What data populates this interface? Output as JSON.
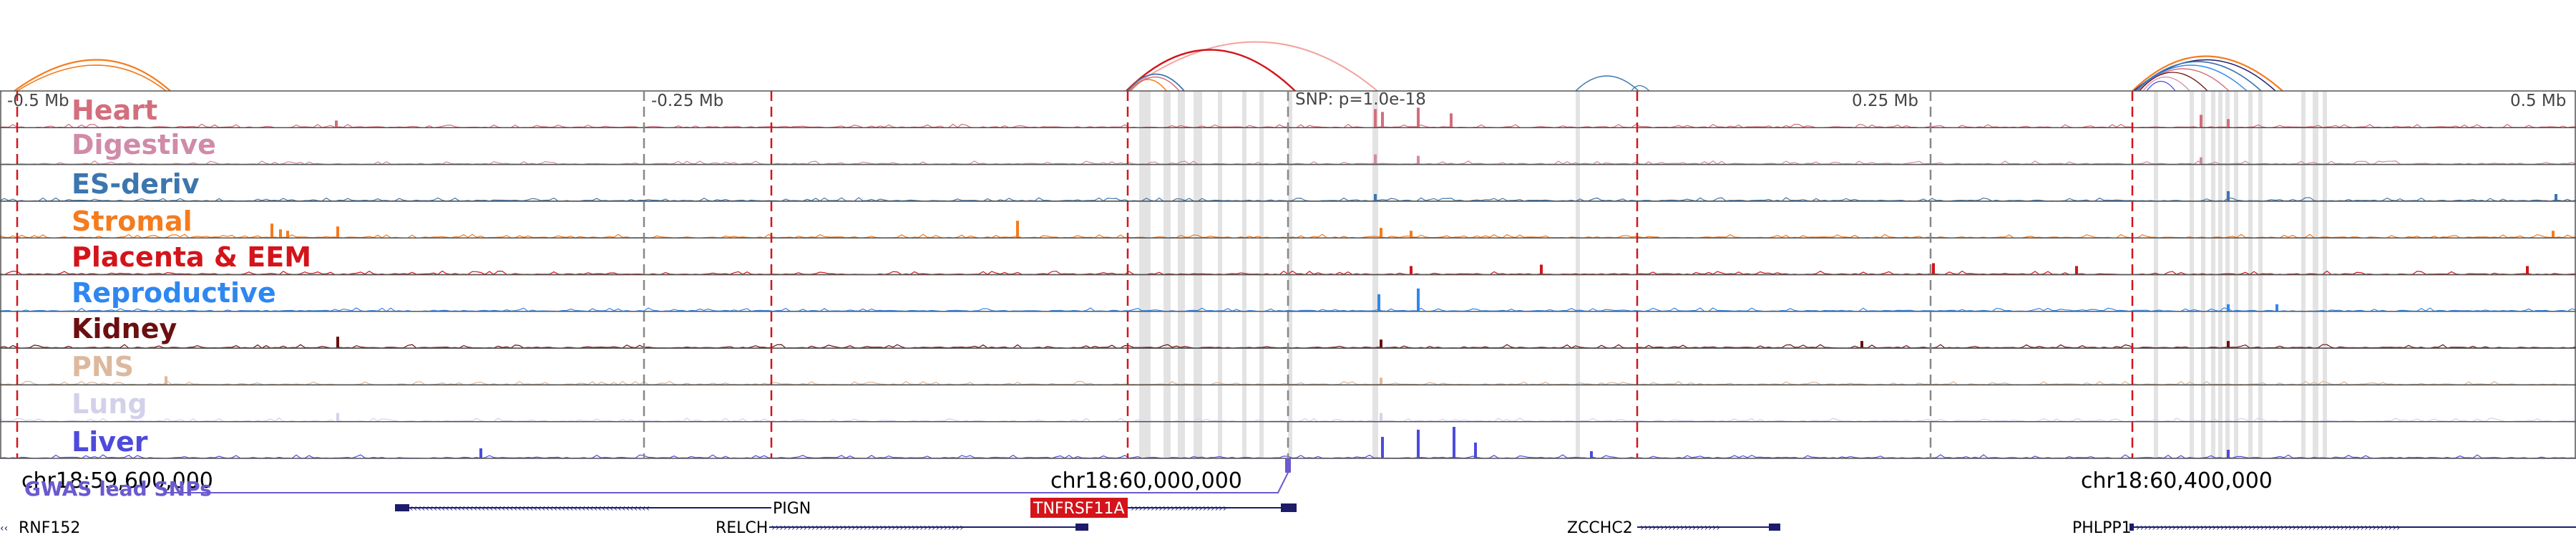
{
  "axis": {
    "left_label": "-0.5 Mb",
    "mid_left_label": "-0.25 Mb",
    "snp_label": "SNP: p=1.0e-18",
    "mid_right_label": "0.25 Mb",
    "right_label": "0.5 Mb"
  },
  "tracks": [
    {
      "label": "Heart",
      "color": "#d36e7d"
    },
    {
      "label": "Digestive",
      "color": "#d08ba8"
    },
    {
      "label": "ES-deriv",
      "color": "#3b76ae"
    },
    {
      "label": "Stromal",
      "color": "#f47c1f"
    },
    {
      "label": "Placenta & EEM",
      "color": "#d3141a"
    },
    {
      "label": "Reproductive",
      "color": "#2f87f0"
    },
    {
      "label": "Kidney",
      "color": "#6b0f10"
    },
    {
      "label": "PNS",
      "color": "#dcb99e"
    },
    {
      "label": "Lung",
      "color": "#d3d1ea"
    },
    {
      "label": "Liver",
      "color": "#4c4bdb"
    }
  ],
  "coords": {
    "left": "chr18:59,600,000",
    "mid": "chr18:60,000,000",
    "right": "chr18:60,400,000"
  },
  "gwas_label": "GWAS lead SNPs",
  "genes": [
    {
      "name": "RNF152",
      "highlight": false
    },
    {
      "name": "PIGN",
      "highlight": false
    },
    {
      "name": "RELCH",
      "highlight": false
    },
    {
      "name": "TNFRSF11A",
      "highlight": true
    },
    {
      "name": "ZCCHC2",
      "highlight": false
    },
    {
      "name": "PHLPP1",
      "highlight": false
    }
  ],
  "colors": {
    "gwas": "#6a5acd",
    "gene": "#1c1c6b",
    "highlight_gene_bg": "#d3141a",
    "grid": "#555555",
    "dashed_red": "#d3141a",
    "snp_line": "#888888"
  }
}
